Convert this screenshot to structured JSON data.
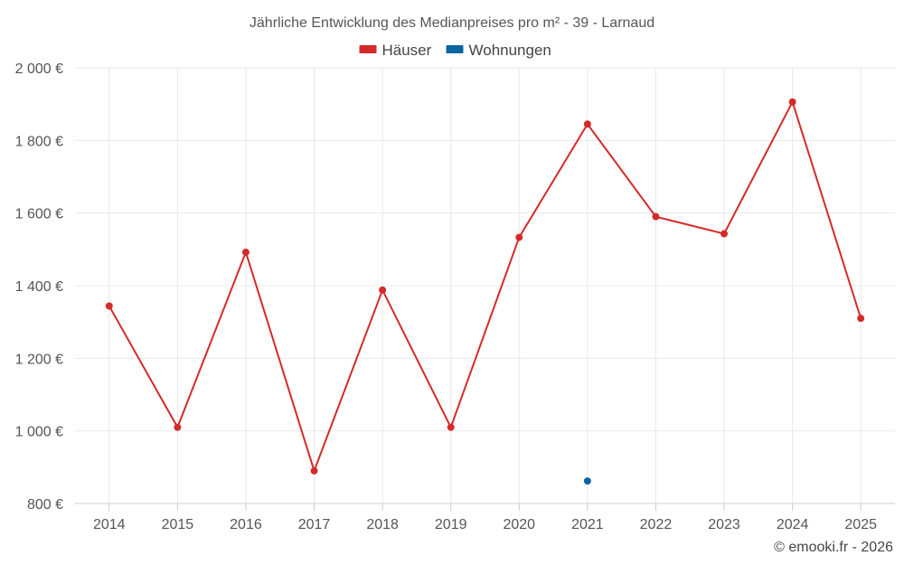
{
  "chart_data": {
    "type": "line",
    "title": "Jährliche Entwicklung des Medianpreises pro m² - 39 - Larnaud",
    "categories": [
      "2014",
      "2015",
      "2016",
      "2017",
      "2018",
      "2019",
      "2020",
      "2021",
      "2022",
      "2023",
      "2024",
      "2025"
    ],
    "series": [
      {
        "name": "Häuser",
        "color": "#d42a2a",
        "values": [
          1344,
          1010,
          1492,
          890,
          1388,
          1010,
          1533,
          1845,
          1590,
          1543,
          1906,
          1310
        ]
      },
      {
        "name": "Wohnungen",
        "color": "#0b65a1",
        "values": [
          null,
          null,
          null,
          null,
          null,
          null,
          null,
          862,
          null,
          null,
          null,
          null
        ]
      }
    ],
    "ylim": [
      800,
      2000
    ],
    "yticks": [
      800,
      1000,
      1200,
      1400,
      1600,
      1800,
      2000
    ],
    "ytick_labels": [
      "800 €",
      "1 000 €",
      "1 200 €",
      "1 400 €",
      "1 600 €",
      "1 800 €",
      "2 000 €"
    ],
    "grid": true,
    "legend_position": "top-center",
    "xlabel": "",
    "ylabel": ""
  },
  "credit": "© emooki.fr - 2026"
}
